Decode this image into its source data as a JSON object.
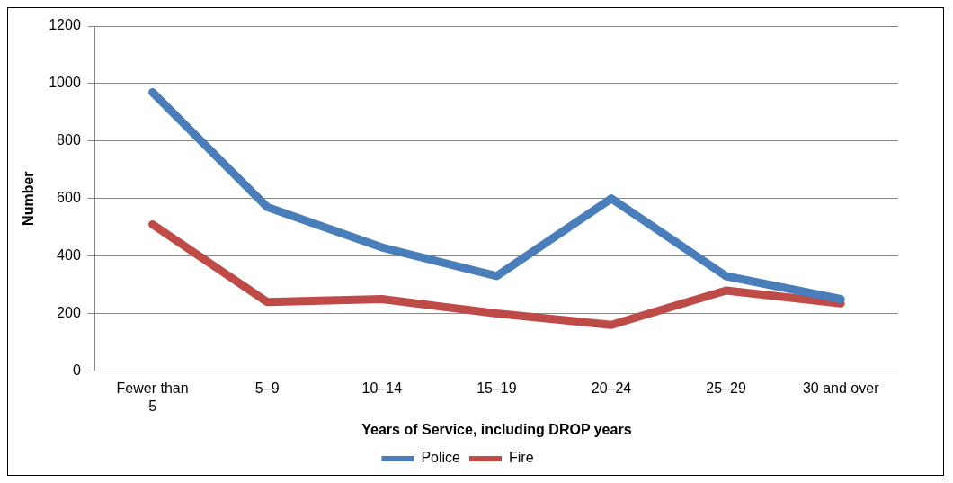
{
  "chart_data": {
    "type": "line",
    "xlabel": "Years of Service, including DROP years",
    "ylabel": "Number",
    "categories": [
      "Fewer than 5",
      "5–9",
      "10–14",
      "15–19",
      "20–24",
      "25–29",
      "30 and over"
    ],
    "series": [
      {
        "name": "Police",
        "color": "#4a7ebb",
        "values": [
          970,
          570,
          430,
          330,
          600,
          330,
          250
        ]
      },
      {
        "name": "Fire",
        "color": "#be4b48",
        "values": [
          510,
          240,
          250,
          200,
          160,
          280,
          235
        ]
      }
    ],
    "ylim": [
      0,
      1200
    ],
    "yticks": [
      0,
      200,
      400,
      600,
      800,
      1000,
      1200
    ],
    "grid": "y",
    "legend": "bottom",
    "marker": "none",
    "line_style": "solid"
  }
}
